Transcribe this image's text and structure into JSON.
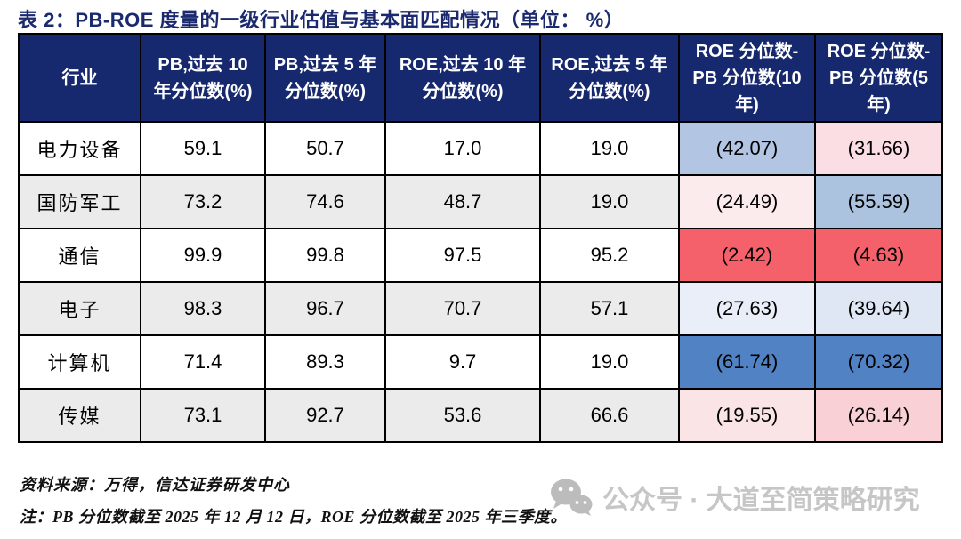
{
  "title": "表 2：PB-ROE 度量的一级行业估值与基本面匹配情况（单位： %）",
  "table": {
    "columns": [
      "行业",
      "PB,过去 10 年分位数(%)",
      "PB,过去 5 年分位数(%)",
      "ROE,过去 10 年分位数(%)",
      "ROE,过去 5 年分位数(%)",
      "ROE 分位数-PB 分位数(10 年)",
      "ROE 分位数-PB 分位数(5 年)"
    ],
    "rows": [
      {
        "industry": "电力设备",
        "values": [
          "59.1",
          "50.7",
          "17.0",
          "19.0"
        ],
        "diffs": [
          "(42.07)",
          "(31.66)"
        ],
        "diff_colors": [
          "#b2c6e4",
          "#fbdee3"
        ]
      },
      {
        "industry": "国防军工",
        "values": [
          "73.2",
          "74.6",
          "48.7",
          "19.0"
        ],
        "diffs": [
          "(24.49)",
          "(55.59)"
        ],
        "diff_colors": [
          "#fcebed",
          "#abc3df"
        ]
      },
      {
        "industry": "通信",
        "values": [
          "99.9",
          "99.8",
          "97.5",
          "95.2"
        ],
        "diffs": [
          "(2.42)",
          "(4.63)"
        ],
        "diff_colors": [
          "#f4616b",
          "#f4616b"
        ]
      },
      {
        "industry": "电子",
        "values": [
          "98.3",
          "96.7",
          "70.7",
          "57.1"
        ],
        "diffs": [
          "(27.63)",
          "(39.64)"
        ],
        "diff_colors": [
          "#e9eef8",
          "#dfe7f4"
        ]
      },
      {
        "industry": "计算机",
        "values": [
          "71.4",
          "89.3",
          "9.7",
          "19.0"
        ],
        "diffs": [
          "(61.74)",
          "(70.32)"
        ],
        "diff_colors": [
          "#5182c3",
          "#5182c3"
        ]
      },
      {
        "industry": "传媒",
        "values": [
          "73.1",
          "92.7",
          "53.6",
          "66.6"
        ],
        "diffs": [
          "(19.55)",
          "(26.14)"
        ],
        "diff_colors": [
          "#fbe4e6",
          "#f8d0d5"
        ]
      }
    ]
  },
  "footer": {
    "source": "资料来源：万得，信达证券研发中心",
    "note": "注：PB 分位数截至 2025 年 12 月 12 日，ROE 分位数截至 2025 年三季度。"
  },
  "watermark": {
    "icon": "wechat-icon",
    "text": "公众号 · 大道至简策略研究"
  },
  "colors": {
    "header_bg": "#17296e",
    "title_text": "#1b2a6e",
    "row_shade": "#ebebeb",
    "border": "#000000",
    "watermark_gray": "#c6c6c6"
  }
}
